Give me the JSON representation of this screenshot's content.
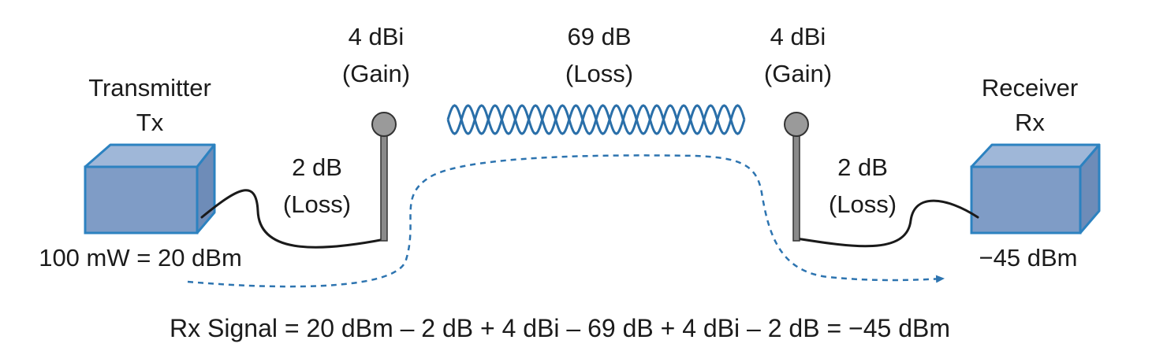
{
  "transmitter": {
    "name": "Transmitter",
    "abbr": "Tx",
    "power": "100 mW = 20 dBm"
  },
  "tx_cable": {
    "value": "2 dB",
    "type": "(Loss)"
  },
  "tx_antenna": {
    "value": "4 dBi",
    "type": "(Gain)"
  },
  "free_space": {
    "value": "69 dB",
    "type": "(Loss)"
  },
  "rx_antenna": {
    "value": "4 dBi",
    "type": "(Gain)"
  },
  "rx_cable": {
    "value": "2 dB",
    "type": "(Loss)"
  },
  "receiver": {
    "name": "Receiver",
    "abbr": "Rx",
    "power": "−45 dBm"
  },
  "formula": "Rx Signal = 20 dBm – 2 dB + 4 dBi – 69 dB + 4 dBi – 2 dB = −45 dBm",
  "colors": {
    "box_front": "#7f9cc6",
    "box_top": "#9fb7d8",
    "box_side": "#6e8cb8",
    "box_edge": "#2c82c0",
    "wave": "#2a6fa9",
    "signal_path": "#2d74b0",
    "antenna_head": "#9a9a9a",
    "antenna_mast": "#8a8a8a",
    "cable": "#1a1a1a",
    "text": "#1b1b1b"
  }
}
